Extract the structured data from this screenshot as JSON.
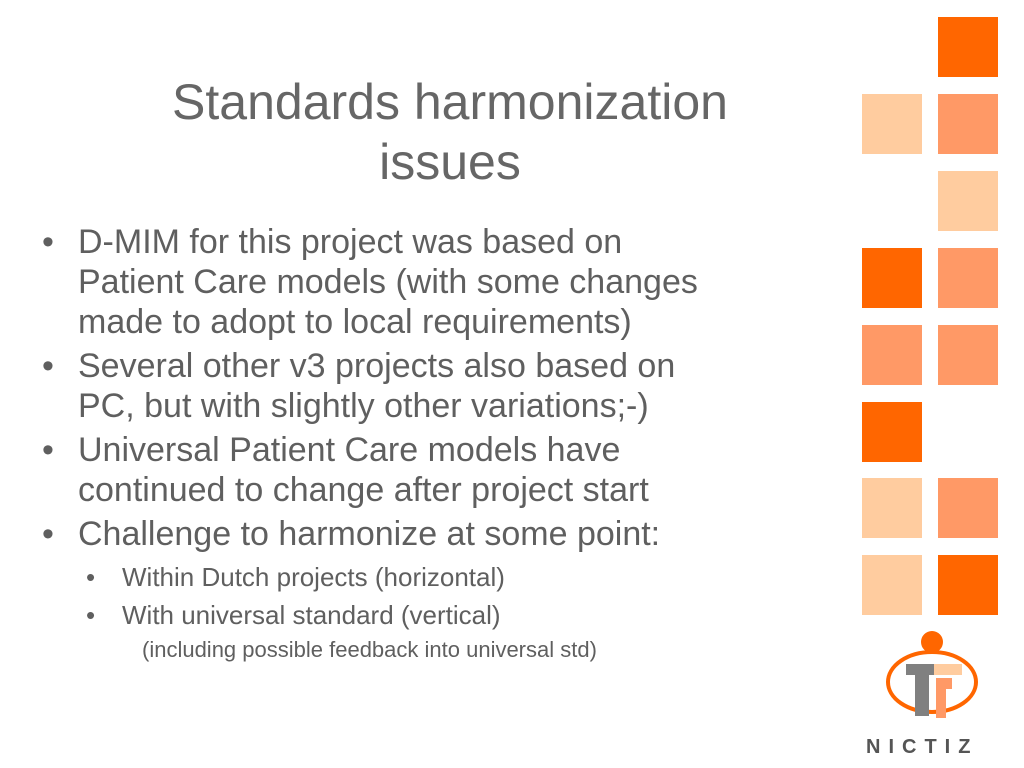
{
  "slide": {
    "title_line1": "Standards harmonization",
    "title_line2": "issues",
    "bullets": [
      {
        "lines": [
          "D-MIM for this project was based on",
          "Patient Care models (with some changes",
          "made to adopt to local requirements)"
        ]
      },
      {
        "lines": [
          "Several other v3 projects also based on",
          "PC, but with slightly other variations;-)"
        ]
      },
      {
        "lines": [
          "Universal Patient Care models have",
          "continued to change after project start"
        ]
      },
      {
        "lines": [
          "Challenge to harmonize at some point:"
        ]
      }
    ],
    "sub_bullets": [
      "Within Dutch projects (horizontal)",
      "With universal standard (vertical)"
    ],
    "note": "(including possible feedback into universal std)",
    "bullet_char": "•"
  },
  "brand": {
    "name": "NICTIZ",
    "logo_icon": "nictiz-logo-icon"
  },
  "colors": {
    "dark_orange": "#ff6600",
    "medium_orange": "#ff9966",
    "light_orange": "#ffcc9f"
  }
}
